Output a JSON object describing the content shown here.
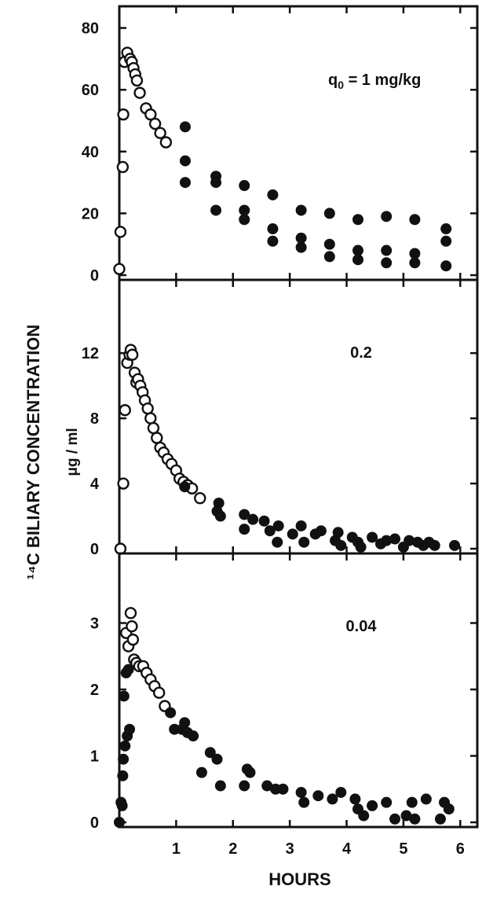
{
  "chart_data": {
    "type": "scatter",
    "ylabel": "¹⁴C BILIARY CONCENTRATION",
    "ylabel_unit": "μg / ml",
    "xlabel": "HOURS",
    "xlim": [
      0,
      6.3
    ],
    "xticks": [
      "1",
      "2",
      "3",
      "4",
      "5",
      "6"
    ],
    "colors": {
      "ink": "#111111",
      "background": "#ffffff"
    },
    "panels": [
      {
        "label_prefix": "q",
        "label_sub": "0",
        "label_rest": " = 1 mg/kg",
        "ylim": [
          0,
          86
        ],
        "yticks": [
          "0",
          "20",
          "40",
          "60",
          "80"
        ],
        "series": [
          {
            "marker": "open",
            "points": [
              [
                0.0,
                2
              ],
              [
                0.02,
                14
              ],
              [
                0.06,
                35
              ],
              [
                0.07,
                52
              ],
              [
                0.09,
                69
              ],
              [
                0.14,
                72
              ],
              [
                0.19,
                70
              ],
              [
                0.22,
                69
              ],
              [
                0.25,
                67
              ],
              [
                0.28,
                65
              ],
              [
                0.31,
                63
              ],
              [
                0.36,
                59
              ],
              [
                0.47,
                54
              ],
              [
                0.55,
                52
              ],
              [
                0.63,
                49
              ],
              [
                0.72,
                46
              ],
              [
                0.82,
                43
              ]
            ]
          },
          {
            "marker": "filled",
            "points": [
              [
                1.16,
                48
              ],
              [
                1.16,
                37
              ],
              [
                1.16,
                30
              ],
              [
                1.7,
                32
              ],
              [
                1.7,
                30
              ],
              [
                1.7,
                21
              ],
              [
                2.2,
                29
              ],
              [
                2.2,
                21
              ],
              [
                2.2,
                18
              ],
              [
                2.7,
                26
              ],
              [
                2.7,
                15
              ],
              [
                2.7,
                11
              ],
              [
                3.2,
                21
              ],
              [
                3.2,
                12
              ],
              [
                3.2,
                9
              ],
              [
                3.7,
                20
              ],
              [
                3.7,
                10
              ],
              [
                3.7,
                6
              ],
              [
                4.2,
                18
              ],
              [
                4.2,
                8
              ],
              [
                4.2,
                5
              ],
              [
                4.7,
                19
              ],
              [
                4.7,
                8
              ],
              [
                4.7,
                4
              ],
              [
                5.2,
                18
              ],
              [
                5.2,
                7
              ],
              [
                5.2,
                4
              ],
              [
                5.75,
                15
              ],
              [
                5.75,
                11
              ],
              [
                5.75,
                3
              ]
            ]
          }
        ]
      },
      {
        "label": "0.2",
        "ylim": [
          0,
          16.3
        ],
        "yticks": [
          "0",
          "4",
          "8",
          "12"
        ],
        "series": [
          {
            "marker": "open",
            "points": [
              [
                0.02,
                0
              ],
              [
                0.07,
                4
              ],
              [
                0.1,
                8.5
              ],
              [
                0.14,
                11.4
              ],
              [
                0.18,
                11.9
              ],
              [
                0.2,
                12.2
              ],
              [
                0.23,
                11.9
              ],
              [
                0.27,
                10.8
              ],
              [
                0.3,
                10.2
              ],
              [
                0.33,
                10.4
              ],
              [
                0.37,
                10.0
              ],
              [
                0.41,
                9.6
              ],
              [
                0.45,
                9.1
              ],
              [
                0.5,
                8.6
              ],
              [
                0.55,
                8.0
              ],
              [
                0.6,
                7.4
              ],
              [
                0.66,
                6.8
              ],
              [
                0.72,
                6.2
              ],
              [
                0.78,
                5.9
              ],
              [
                0.85,
                5.5
              ],
              [
                0.92,
                5.2
              ],
              [
                1.0,
                4.8
              ],
              [
                1.06,
                4.3
              ],
              [
                1.13,
                4.1
              ],
              [
                1.2,
                3.9
              ],
              [
                1.28,
                3.7
              ],
              [
                1.42,
                3.1
              ]
            ]
          },
          {
            "marker": "filled",
            "points": [
              [
                1.15,
                3.8
              ],
              [
                1.75,
                2.8
              ],
              [
                1.72,
                2.3
              ],
              [
                1.78,
                2.0
              ],
              [
                2.2,
                2.1
              ],
              [
                2.2,
                1.2
              ],
              [
                2.35,
                1.8
              ],
              [
                2.55,
                1.7
              ],
              [
                2.65,
                1.1
              ],
              [
                2.78,
                0.4
              ],
              [
                2.8,
                1.4
              ],
              [
                3.05,
                0.9
              ],
              [
                3.2,
                1.4
              ],
              [
                3.25,
                0.4
              ],
              [
                3.45,
                0.9
              ],
              [
                3.55,
                1.1
              ],
              [
                3.8,
                0.5
              ],
              [
                3.85,
                1.0
              ],
              [
                3.9,
                0.2
              ],
              [
                4.1,
                0.7
              ],
              [
                4.2,
                0.4
              ],
              [
                4.25,
                0.1
              ],
              [
                4.45,
                0.7
              ],
              [
                4.6,
                0.3
              ],
              [
                4.7,
                0.5
              ],
              [
                4.85,
                0.6
              ],
              [
                5.0,
                0.1
              ],
              [
                5.1,
                0.5
              ],
              [
                5.25,
                0.4
              ],
              [
                5.35,
                0.2
              ],
              [
                5.45,
                0.4
              ],
              [
                5.55,
                0.2
              ],
              [
                5.9,
                0.2
              ]
            ]
          }
        ]
      },
      {
        "label": "0.04",
        "ylim": [
          0,
          4.0
        ],
        "yticks": [
          "0",
          "1",
          "2",
          "3"
        ],
        "series": [
          {
            "marker": "open",
            "points": [
              [
                0.12,
                2.85
              ],
              [
                0.16,
                2.65
              ],
              [
                0.2,
                3.15
              ],
              [
                0.22,
                2.95
              ],
              [
                0.24,
                2.75
              ],
              [
                0.26,
                2.45
              ],
              [
                0.3,
                2.4
              ],
              [
                0.35,
                2.35
              ],
              [
                0.42,
                2.35
              ],
              [
                0.48,
                2.25
              ],
              [
                0.55,
                2.15
              ],
              [
                0.62,
                2.05
              ],
              [
                0.7,
                1.95
              ],
              [
                0.8,
                1.75
              ]
            ]
          },
          {
            "marker": "filled",
            "points": [
              [
                0.0,
                0.0
              ],
              [
                0.03,
                0.3
              ],
              [
                0.05,
                0.25
              ],
              [
                0.06,
                0.7
              ],
              [
                0.07,
                0.95
              ],
              [
                0.08,
                1.9
              ],
              [
                0.1,
                1.15
              ],
              [
                0.12,
                2.25
              ],
              [
                0.14,
                1.3
              ],
              [
                0.16,
                2.3
              ],
              [
                0.18,
                1.4
              ],
              [
                0.9,
                1.65
              ],
              [
                0.97,
                1.4
              ],
              [
                1.1,
                1.4
              ],
              [
                1.15,
                1.5
              ],
              [
                1.2,
                1.35
              ],
              [
                1.3,
                1.3
              ],
              [
                1.45,
                0.75
              ],
              [
                1.6,
                1.05
              ],
              [
                1.72,
                0.95
              ],
              [
                1.78,
                0.55
              ],
              [
                2.2,
                0.55
              ],
              [
                2.25,
                0.8
              ],
              [
                2.3,
                0.75
              ],
              [
                2.6,
                0.55
              ],
              [
                2.75,
                0.5
              ],
              [
                2.88,
                0.5
              ],
              [
                3.2,
                0.45
              ],
              [
                3.25,
                0.3
              ],
              [
                3.5,
                0.4
              ],
              [
                3.75,
                0.35
              ],
              [
                3.9,
                0.45
              ],
              [
                4.15,
                0.35
              ],
              [
                4.2,
                0.2
              ],
              [
                4.3,
                0.1
              ],
              [
                4.45,
                0.25
              ],
              [
                4.7,
                0.3
              ],
              [
                4.85,
                0.05
              ],
              [
                5.05,
                0.1
              ],
              [
                5.15,
                0.3
              ],
              [
                5.2,
                0.05
              ],
              [
                5.4,
                0.35
              ],
              [
                5.65,
                0.05
              ],
              [
                5.72,
                0.3
              ],
              [
                5.8,
                0.2
              ]
            ]
          }
        ]
      }
    ]
  }
}
